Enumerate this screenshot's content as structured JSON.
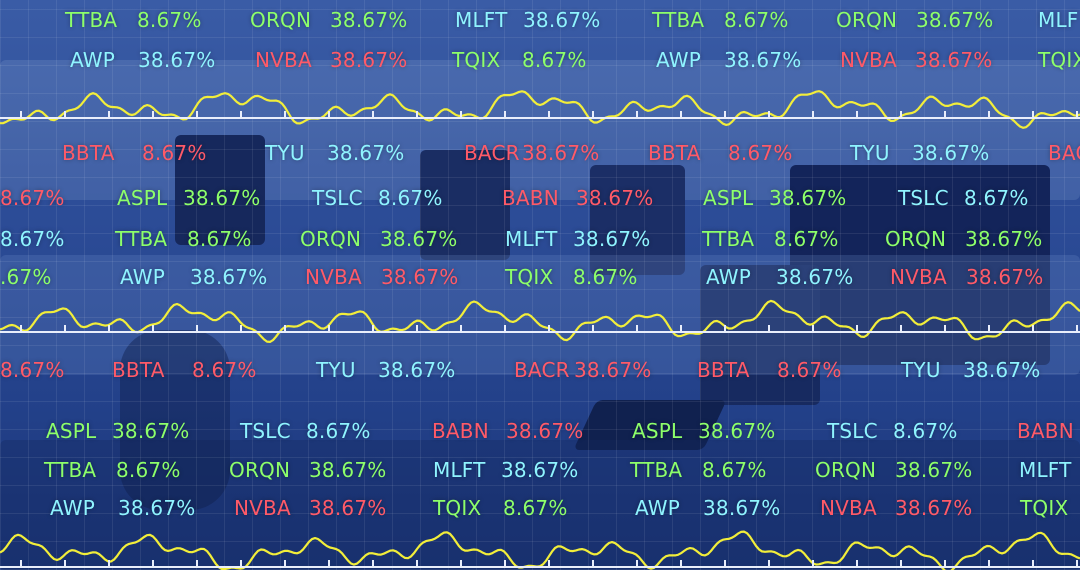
{
  "colors": {
    "green": "#8dff6a",
    "cyan": "#8ff4ff",
    "red": "#ff5a68",
    "wave": "#f2ee3a",
    "axis": "#e9eefb"
  },
  "ticker_rows": [
    {
      "items": [
        {
          "symbol": "",
          "value": "%",
          "color": "cyan"
        },
        {
          "symbol": "TTBA",
          "value": "8.67%",
          "color": "green"
        },
        {
          "symbol": "ORQN",
          "value": "38.67%",
          "color": "green"
        },
        {
          "symbol": "MLFT",
          "value": "38.67%",
          "color": "cyan"
        },
        {
          "symbol": "TTBA",
          "value": "8.67%",
          "color": "green"
        },
        {
          "symbol": "ORQN",
          "value": "38.67%",
          "color": "green"
        },
        {
          "symbol": "MLF",
          "value": "",
          "color": "cyan"
        }
      ]
    },
    {
      "items": [
        {
          "symbol": "AWP",
          "value": "38.67%",
          "color": "cyan"
        },
        {
          "symbol": "NVBA",
          "value": "38.67%",
          "color": "red"
        },
        {
          "symbol": "TQIX",
          "value": "8.67%",
          "color": "green"
        },
        {
          "symbol": "AWP",
          "value": "38.67%",
          "color": "cyan"
        },
        {
          "symbol": "NVBA",
          "value": "38.67%",
          "color": "red"
        },
        {
          "symbol": "TQIX",
          "value": "",
          "color": "green"
        }
      ]
    },
    {
      "items": [
        {
          "symbol": "",
          "value": "%",
          "color": "red"
        },
        {
          "symbol": "BBTA",
          "value": "8.67%",
          "color": "red"
        },
        {
          "symbol": "TYU",
          "value": "38.67%",
          "color": "cyan"
        },
        {
          "symbol": "BACR",
          "value": "38.67%",
          "color": "red"
        },
        {
          "symbol": "BBTA",
          "value": "8.67%",
          "color": "red"
        },
        {
          "symbol": "TYU",
          "value": "38.67%",
          "color": "cyan"
        },
        {
          "symbol": "BAC",
          "value": "",
          "color": "red"
        }
      ]
    },
    {
      "items": [
        {
          "symbol": "",
          "value": "8.67%",
          "color": "red"
        },
        {
          "symbol": "ASPL",
          "value": "38.67%",
          "color": "green"
        },
        {
          "symbol": "TSLC",
          "value": "8.67%",
          "color": "cyan"
        },
        {
          "symbol": "BABN",
          "value": "38.67%",
          "color": "red"
        },
        {
          "symbol": "ASPL",
          "value": "38.67%",
          "color": "green"
        },
        {
          "symbol": "TSLC",
          "value": "8.67%",
          "color": "cyan"
        }
      ]
    },
    {
      "items": [
        {
          "symbol": "",
          "value": "8.67%",
          "color": "cyan"
        },
        {
          "symbol": "TTBA",
          "value": "8.67%",
          "color": "green"
        },
        {
          "symbol": "ORQN",
          "value": "38.67%",
          "color": "green"
        },
        {
          "symbol": "MLFT",
          "value": "38.67%",
          "color": "cyan"
        },
        {
          "symbol": "TTBA",
          "value": "8.67%",
          "color": "green"
        },
        {
          "symbol": "ORQN",
          "value": "38.67%",
          "color": "green"
        }
      ]
    },
    {
      "items": [
        {
          "symbol": "",
          "value": ".67%",
          "color": "green"
        },
        {
          "symbol": "AWP",
          "value": "38.67%",
          "color": "cyan"
        },
        {
          "symbol": "NVBA",
          "value": "38.67%",
          "color": "red"
        },
        {
          "symbol": "TQIX",
          "value": "8.67%",
          "color": "green"
        },
        {
          "symbol": "AWP",
          "value": "38.67%",
          "color": "cyan"
        },
        {
          "symbol": "NVBA",
          "value": "38.67%",
          "color": "red"
        }
      ]
    },
    {
      "items": [
        {
          "symbol": "",
          "value": "8.67%",
          "color": "red"
        },
        {
          "symbol": "BBTA",
          "value": "8.67%",
          "color": "red"
        },
        {
          "symbol": "TYU",
          "value": "38.67%",
          "color": "cyan"
        },
        {
          "symbol": "BACR",
          "value": "38.67%",
          "color": "red"
        },
        {
          "symbol": "BBTA",
          "value": "8.67%",
          "color": "red"
        },
        {
          "symbol": "TYU",
          "value": "38.67%",
          "color": "cyan"
        }
      ]
    },
    {
      "items": [
        {
          "symbol": "ASPL",
          "value": "38.67%",
          "color": "green"
        },
        {
          "symbol": "TSLC",
          "value": "8.67%",
          "color": "cyan"
        },
        {
          "symbol": "BABN",
          "value": "38.67%",
          "color": "red"
        },
        {
          "symbol": "ASPL",
          "value": "38.67%",
          "color": "green"
        },
        {
          "symbol": "TSLC",
          "value": "8.67%",
          "color": "cyan"
        },
        {
          "symbol": "BABN",
          "value": "",
          "color": "red"
        }
      ]
    },
    {
      "items": [
        {
          "symbol": "TTBA",
          "value": "8.67%",
          "color": "green"
        },
        {
          "symbol": "ORQN",
          "value": "38.67%",
          "color": "green"
        },
        {
          "symbol": "MLFT",
          "value": "38.67%",
          "color": "cyan"
        },
        {
          "symbol": "TTBA",
          "value": "8.67%",
          "color": "green"
        },
        {
          "symbol": "ORQN",
          "value": "38.67%",
          "color": "green"
        },
        {
          "symbol": "MLFT",
          "value": "",
          "color": "cyan"
        }
      ]
    },
    {
      "items": [
        {
          "symbol": "AWP",
          "value": "38.67%",
          "color": "cyan"
        },
        {
          "symbol": "NVBA",
          "value": "38.67%",
          "color": "red"
        },
        {
          "symbol": "TQIX",
          "value": "8.67%",
          "color": "green"
        },
        {
          "symbol": "AWP",
          "value": "38.67%",
          "color": "cyan"
        },
        {
          "symbol": "NVBA",
          "value": "38.67%",
          "color": "red"
        },
        {
          "symbol": "TQIX",
          "value": "",
          "color": "green"
        }
      ]
    }
  ]
}
